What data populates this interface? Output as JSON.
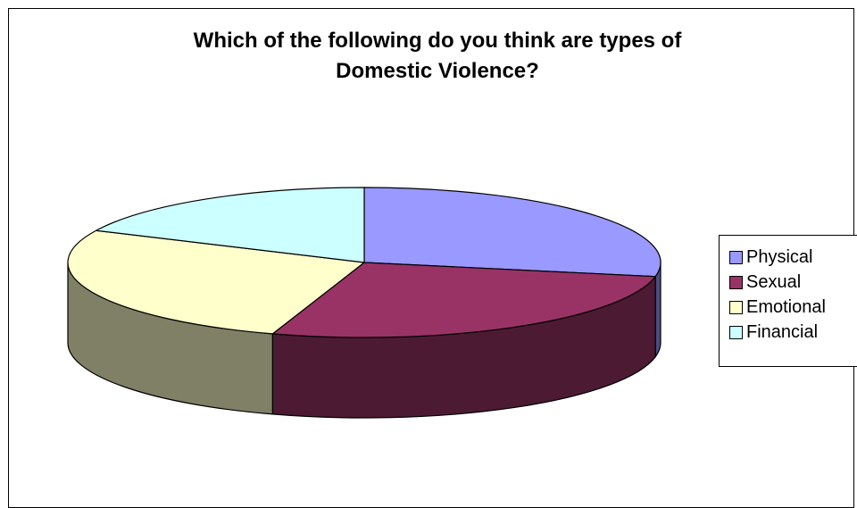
{
  "chart_data": {
    "type": "pie",
    "style": "3d",
    "title_lines": [
      "Which of the following do you think are types of",
      "Domestic Violence?"
    ],
    "categories": [
      "Physical",
      "Sexual",
      "Emotional",
      "Financial"
    ],
    "values": [
      28,
      27,
      27,
      18
    ],
    "colors": [
      "#9999FF",
      "#993366",
      "#FFFFCC",
      "#CCFFFF"
    ],
    "side_colors": [
      "#4C4C80",
      "#4C1A33",
      "#808066",
      "#668080"
    ],
    "legend_position": "right"
  }
}
